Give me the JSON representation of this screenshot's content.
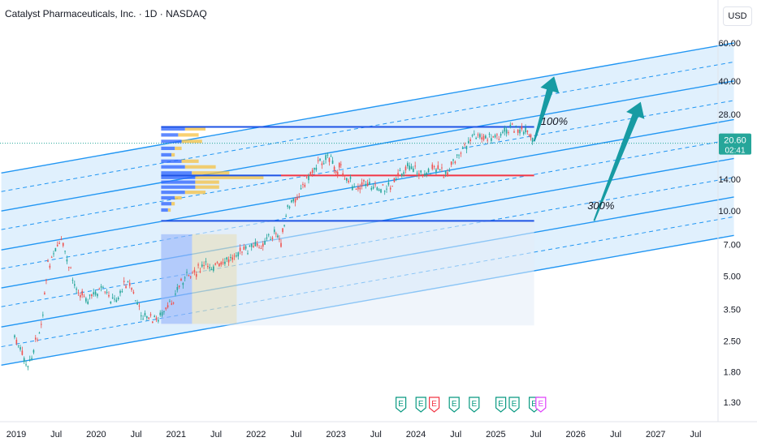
{
  "header": {
    "title": "Catalyst Pharmaceuticals, Inc. · 1D · NASDAQ",
    "currency": "USD"
  },
  "chart_data": {
    "type": "candlestick",
    "scale": "log",
    "price_axis_ticks": [
      "60.00",
      "40.00",
      "28.00",
      "20.00",
      "14.00",
      "10.00",
      "7.00",
      "5.00",
      "3.50",
      "2.50",
      "1.80",
      "1.30"
    ],
    "time_axis_ticks": [
      "2019",
      "Jul",
      "2020",
      "Jul",
      "2021",
      "Jul",
      "2022",
      "Jul",
      "2023",
      "Jul",
      "2024",
      "Jul",
      "2025",
      "Jul",
      "2026",
      "Jul",
      "2027",
      "Jul"
    ],
    "last_price": {
      "value": "20.60",
      "countdown": "02:41",
      "color": "#26a69a"
    },
    "price_path": [
      {
        "date": "2019-01",
        "price": 2.6
      },
      {
        "date": "2019-03",
        "price": 1.85
      },
      {
        "date": "2019-05",
        "price": 3.0
      },
      {
        "date": "2019-06",
        "price": 5.6
      },
      {
        "date": "2019-08",
        "price": 7.2
      },
      {
        "date": "2019-10",
        "price": 4.5
      },
      {
        "date": "2019-12",
        "price": 3.9
      },
      {
        "date": "2020-02",
        "price": 4.3
      },
      {
        "date": "2020-04",
        "price": 3.8
      },
      {
        "date": "2020-06",
        "price": 4.8
      },
      {
        "date": "2020-08",
        "price": 3.3
      },
      {
        "date": "2020-10",
        "price": 3.1
      },
      {
        "date": "2020-12",
        "price": 3.5
      },
      {
        "date": "2021-02",
        "price": 4.7
      },
      {
        "date": "2021-04",
        "price": 5.2
      },
      {
        "date": "2021-06",
        "price": 5.6
      },
      {
        "date": "2021-08",
        "price": 5.5
      },
      {
        "date": "2021-10",
        "price": 6.3
      },
      {
        "date": "2021-12",
        "price": 6.6
      },
      {
        "date": "2022-02",
        "price": 7.0
      },
      {
        "date": "2022-04",
        "price": 7.9
      },
      {
        "date": "2022-05",
        "price": 7.2
      },
      {
        "date": "2022-06",
        "price": 10.2
      },
      {
        "date": "2022-08",
        "price": 12.5
      },
      {
        "date": "2022-10",
        "price": 16.0
      },
      {
        "date": "2022-12",
        "price": 18.0
      },
      {
        "date": "2023-01",
        "price": 16.0
      },
      {
        "date": "2023-02",
        "price": 15.5
      },
      {
        "date": "2023-04",
        "price": 12.8
      },
      {
        "date": "2023-06",
        "price": 13.5
      },
      {
        "date": "2023-08",
        "price": 12.5
      },
      {
        "date": "2023-10",
        "price": 13.5
      },
      {
        "date": "2023-12",
        "price": 16.5
      },
      {
        "date": "2024-02",
        "price": 14.8
      },
      {
        "date": "2024-04",
        "price": 15.5
      },
      {
        "date": "2024-06",
        "price": 15.0
      },
      {
        "date": "2024-08",
        "price": 19.0
      },
      {
        "date": "2024-10",
        "price": 22.0
      },
      {
        "date": "2024-12",
        "price": 21.5
      },
      {
        "date": "2025-02",
        "price": 22.5
      },
      {
        "date": "2025-04",
        "price": 24.5
      },
      {
        "date": "2025-06",
        "price": 22.5
      },
      {
        "date": "2025-07",
        "price": 20.6
      }
    ],
    "channel": {
      "color": "#2196f3",
      "fill": "#bbdefb",
      "lines": [
        {
          "style": "solid",
          "x0": "2018-11",
          "y0": 15.0,
          "x1": "2028-01",
          "y1": 60.0
        },
        {
          "style": "dashed",
          "x0": "2018-11",
          "y0": 12.3,
          "x1": "2028-01",
          "y1": 49.0
        },
        {
          "style": "solid",
          "x0": "2018-11",
          "y0": 10.0,
          "x1": "2028-01",
          "y1": 40.0
        },
        {
          "style": "dashed",
          "x0": "2018-11",
          "y0": 8.2,
          "x1": "2028-01",
          "y1": 32.5
        },
        {
          "style": "solid",
          "x0": "2018-11",
          "y0": 6.6,
          "x1": "2028-01",
          "y1": 26.5
        },
        {
          "style": "dashed",
          "x0": "2018-11",
          "y0": 5.4,
          "x1": "2028-01",
          "y1": 21.5
        },
        {
          "style": "solid",
          "x0": "2018-11",
          "y0": 4.4,
          "x1": "2028-01",
          "y1": 17.5
        },
        {
          "style": "dashed",
          "x0": "2018-11",
          "y0": 3.6,
          "x1": "2028-01",
          "y1": 14.3
        },
        {
          "style": "solid",
          "x0": "2018-11",
          "y0": 2.9,
          "x1": "2028-01",
          "y1": 11.6
        },
        {
          "style": "dashed",
          "x0": "2018-11",
          "y0": 2.35,
          "x1": "2028-01",
          "y1": 9.4
        },
        {
          "style": "solid",
          "x0": "2018-11",
          "y0": 1.93,
          "x1": "2028-01",
          "y1": 7.7
        }
      ]
    },
    "horizontal_levels": [
      {
        "price": 24.5,
        "color": "#1e53e5",
        "from": "2020-11",
        "to": "2025-07"
      },
      {
        "price": 14.6,
        "color": "#1e53e5",
        "from": "2020-11",
        "to": "2022-05"
      },
      {
        "price": 14.6,
        "color": "#f23645",
        "from": "2022-05",
        "to": "2025-07"
      },
      {
        "price": 9.0,
        "color": "#1e53e5",
        "from": "2020-11",
        "to": "2025-07"
      }
    ],
    "volume_profile": {
      "from": "2020-11",
      "rows": [
        {
          "price": 24.0,
          "up": 0.35,
          "down": 0.3
        },
        {
          "price": 22.5,
          "up": 0.25,
          "down": 0.3
        },
        {
          "price": 21.0,
          "up": 0.3,
          "down": 0.3
        },
        {
          "price": 19.5,
          "up": 0.2,
          "down": 0.1
        },
        {
          "price": 18.2,
          "up": 0.15,
          "down": 0.05
        },
        {
          "price": 17.0,
          "up": 0.3,
          "down": 0.25
        },
        {
          "price": 16.0,
          "up": 0.35,
          "down": 0.45
        },
        {
          "price": 15.0,
          "up": 0.45,
          "down": 0.55
        },
        {
          "price": 14.3,
          "up": 0.5,
          "down": 1.0
        },
        {
          "price": 13.6,
          "up": 0.5,
          "down": 0.35
        },
        {
          "price": 12.9,
          "up": 0.5,
          "down": 0.35
        },
        {
          "price": 12.2,
          "up": 0.35,
          "down": 0.3
        },
        {
          "price": 11.5,
          "up": 0.2,
          "down": 0.1
        },
        {
          "price": 10.8,
          "up": 0.15,
          "down": 0.05
        },
        {
          "price": 10.1,
          "up": 0.1,
          "down": 0.04
        }
      ]
    },
    "annotations": [
      {
        "text": "100%",
        "date": "2025-08",
        "price": 25.0
      },
      {
        "text": "300%",
        "date": "2026-03",
        "price": 10.2
      }
    ],
    "arrows": [
      {
        "x0": "2025-07",
        "y0": 21.0,
        "x1": "2025-10",
        "y1": 42.0,
        "color": "#179ba3"
      },
      {
        "x0": "2026-04",
        "y0": 9.0,
        "x1": "2026-11",
        "y1": 32.0,
        "color": "#179ba3"
      }
    ],
    "earnings_markers": [
      {
        "date": "2023-11",
        "label": "E",
        "color": "#089981"
      },
      {
        "date": "2024-02",
        "label": "E",
        "color": "#089981"
      },
      {
        "date": "2024-04",
        "label": "E",
        "color": "#f23645"
      },
      {
        "date": "2024-07",
        "label": "E",
        "color": "#089981"
      },
      {
        "date": "2024-10",
        "label": "E",
        "color": "#089981"
      },
      {
        "date": "2025-02",
        "label": "E",
        "color": "#089981"
      },
      {
        "date": "2025-04",
        "label": "E",
        "color": "#089981"
      },
      {
        "date": "2025-07",
        "label": "E",
        "color": "#089981"
      },
      {
        "date": "2025-08",
        "label": "E",
        "color": "#e040fb"
      }
    ]
  }
}
